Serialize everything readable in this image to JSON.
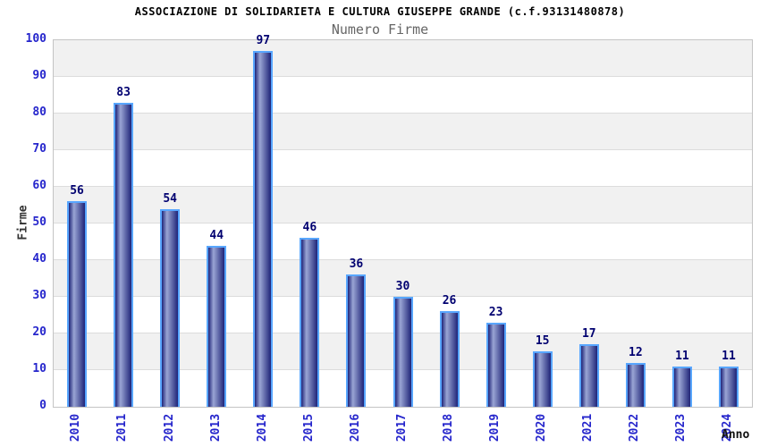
{
  "header": {
    "title": "ASSOCIAZIONE DI SOLIDARIETA E CULTURA GIUSEPPE GRANDE (c.f.93131480878)",
    "subtitle": "Numero Firme"
  },
  "chart_data": {
    "type": "bar",
    "title": "ASSOCIAZIONE DI SOLIDARIETA E CULTURA GIUSEPPE GRANDE (c.f.93131480878)",
    "subtitle": "Numero Firme",
    "categories": [
      "2010",
      "2011",
      "2012",
      "2013",
      "2014",
      "2015",
      "2016",
      "2017",
      "2018",
      "2019",
      "2020",
      "2021",
      "2022",
      "2023",
      "2024"
    ],
    "values": [
      56,
      83,
      54,
      44,
      97,
      46,
      36,
      30,
      26,
      23,
      15,
      17,
      12,
      11,
      11
    ],
    "xlabel": "Anno",
    "ylabel": "Firme",
    "ylim": [
      0,
      100
    ],
    "yticks": [
      0,
      10,
      20,
      30,
      40,
      50,
      60,
      70,
      80,
      90,
      100
    ],
    "grid": "alternating-horizontal-bands",
    "legend": "none",
    "colors": {
      "bar_edge": "#1f2478",
      "bar_center": "#9aa5d4",
      "bar_border": "#58a6ff",
      "value_label": "#000070",
      "tick_label": "#2626cc",
      "band_gray": "#f1f1f1",
      "band_white": "#ffffff",
      "grid_line": "#dcdcdc",
      "plot_border": "#c4c4c4",
      "title_color": "#000000",
      "subtitle_color": "#666666"
    }
  }
}
